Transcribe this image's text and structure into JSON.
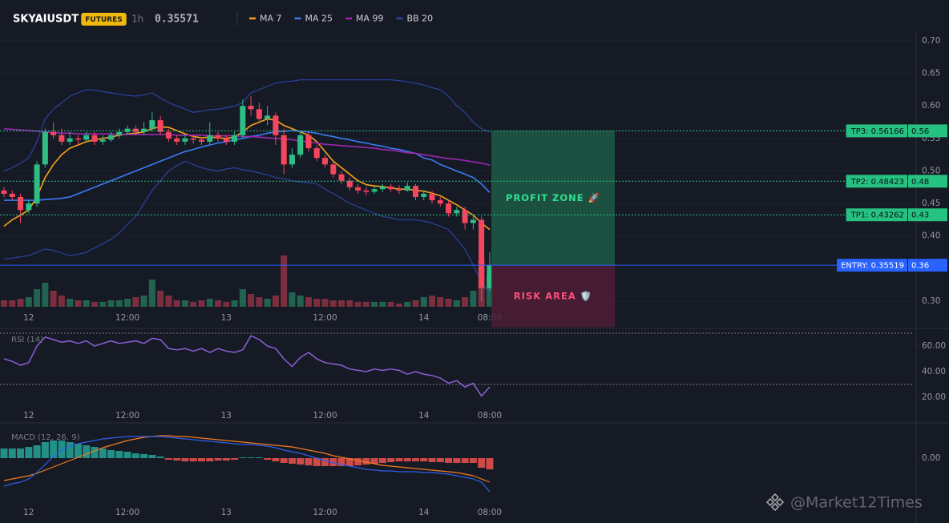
{
  "header": {
    "symbol": "SKYAIUSDT",
    "badge": "FUTURES",
    "interval": "1h",
    "price": 0.35571,
    "price_color": "#2ebd85",
    "watermark": "@Market12Times"
  },
  "chart_data": [
    {
      "type": "candlestick",
      "categories": [
        null,
        null,
        null,
        "12",
        null,
        null,
        null,
        null,
        null,
        null,
        null,
        null,
        null,
        null,
        null,
        "12:00",
        null,
        null,
        null,
        null,
        null,
        null,
        null,
        null,
        null,
        null,
        null,
        "13",
        null,
        null,
        null,
        null,
        null,
        null,
        null,
        null,
        null,
        null,
        null,
        "12:00",
        null,
        null,
        null,
        null,
        null,
        null,
        null,
        null,
        null,
        null,
        null,
        "14",
        null,
        null,
        null,
        null,
        null,
        null,
        null,
        "08:00"
      ],
      "ohlc": [
        [
          0.47,
          0.475,
          0.46,
          0.465
        ],
        [
          0.465,
          0.47,
          0.455,
          0.46
        ],
        [
          0.46,
          0.465,
          0.42,
          0.44
        ],
        [
          0.44,
          0.455,
          0.435,
          0.45
        ],
        [
          0.45,
          0.515,
          0.445,
          0.51
        ],
        [
          0.51,
          0.565,
          0.505,
          0.56
        ],
        [
          0.56,
          0.575,
          0.55,
          0.555
        ],
        [
          0.555,
          0.565,
          0.54,
          0.545
        ],
        [
          0.545,
          0.56,
          0.54,
          0.55
        ],
        [
          0.55,
          0.555,
          0.54,
          0.548
        ],
        [
          0.548,
          0.56,
          0.545,
          0.555
        ],
        [
          0.555,
          0.56,
          0.54,
          0.545
        ],
        [
          0.545,
          0.555,
          0.54,
          0.548
        ],
        [
          0.548,
          0.56,
          0.545,
          0.555
        ],
        [
          0.555,
          0.565,
          0.55,
          0.56
        ],
        [
          0.56,
          0.57,
          0.555,
          0.565
        ],
        [
          0.565,
          0.57,
          0.555,
          0.56
        ],
        [
          0.56,
          0.575,
          0.555,
          0.565
        ],
        [
          0.565,
          0.59,
          0.56,
          0.578
        ],
        [
          0.578,
          0.585,
          0.555,
          0.56
        ],
        [
          0.56,
          0.565,
          0.545,
          0.55
        ],
        [
          0.55,
          0.555,
          0.54,
          0.545
        ],
        [
          0.545,
          0.555,
          0.54,
          0.55
        ],
        [
          0.55,
          0.555,
          0.542,
          0.548
        ],
        [
          0.548,
          0.552,
          0.54,
          0.545
        ],
        [
          0.545,
          0.575,
          0.54,
          0.555
        ],
        [
          0.555,
          0.56,
          0.545,
          0.55
        ],
        [
          0.55,
          0.555,
          0.54,
          0.545
        ],
        [
          0.545,
          0.56,
          0.54,
          0.555
        ],
        [
          0.555,
          0.61,
          0.55,
          0.6
        ],
        [
          0.6,
          0.615,
          0.585,
          0.595
        ],
        [
          0.595,
          0.605,
          0.575,
          0.58
        ],
        [
          0.58,
          0.6,
          0.57,
          0.585
        ],
        [
          0.585,
          0.59,
          0.54,
          0.555
        ],
        [
          0.555,
          0.565,
          0.495,
          0.51
        ],
        [
          0.51,
          0.535,
          0.505,
          0.525
        ],
        [
          0.525,
          0.56,
          0.52,
          0.555
        ],
        [
          0.555,
          0.56,
          0.53,
          0.535
        ],
        [
          0.535,
          0.54,
          0.515,
          0.52
        ],
        [
          0.52,
          0.525,
          0.505,
          0.51
        ],
        [
          0.51,
          0.515,
          0.49,
          0.495
        ],
        [
          0.495,
          0.5,
          0.48,
          0.485
        ],
        [
          0.485,
          0.49,
          0.47,
          0.475
        ],
        [
          0.475,
          0.48,
          0.465,
          0.47
        ],
        [
          0.47,
          0.475,
          0.462,
          0.468
        ],
        [
          0.468,
          0.476,
          0.465,
          0.472
        ],
        [
          0.472,
          0.48,
          0.468,
          0.476
        ],
        [
          0.476,
          0.48,
          0.468,
          0.472
        ],
        [
          0.472,
          0.478,
          0.465,
          0.47
        ],
        [
          0.47,
          0.482,
          0.468,
          0.477
        ],
        [
          0.477,
          0.48,
          0.455,
          0.46
        ],
        [
          0.46,
          0.47,
          0.455,
          0.465
        ],
        [
          0.465,
          0.47,
          0.45,
          0.455
        ],
        [
          0.455,
          0.46,
          0.445,
          0.45
        ],
        [
          0.45,
          0.455,
          0.43,
          0.435
        ],
        [
          0.435,
          0.445,
          0.43,
          0.44
        ],
        [
          0.44,
          0.445,
          0.41,
          0.42
        ],
        [
          0.42,
          0.43,
          0.41,
          0.425
        ],
        [
          0.425,
          0.43,
          0.3,
          0.32
        ],
        [
          0.32,
          0.375,
          0.315,
          0.35571
        ]
      ],
      "volume": [
        8,
        8,
        10,
        12,
        22,
        30,
        20,
        14,
        10,
        8,
        8,
        6,
        6,
        8,
        8,
        10,
        12,
        14,
        34,
        20,
        14,
        8,
        8,
        6,
        8,
        10,
        8,
        6,
        8,
        22,
        16,
        12,
        10,
        14,
        64,
        18,
        14,
        12,
        10,
        10,
        8,
        8,
        8,
        6,
        6,
        6,
        6,
        6,
        4,
        6,
        8,
        12,
        14,
        12,
        10,
        8,
        12,
        20,
        58,
        40
      ],
      "up_color": "#2ebd85",
      "down_color": "#f6465d",
      "series": [
        {
          "name": "MA 7",
          "color": "#f7a21b",
          "values": [
            0.415,
            0.425,
            0.432,
            0.44,
            0.46,
            0.49,
            0.51,
            0.525,
            0.535,
            0.54,
            0.545,
            0.548,
            0.55,
            0.552,
            0.555,
            0.557,
            0.558,
            0.56,
            0.565,
            0.568,
            0.567,
            0.562,
            0.557,
            0.553,
            0.551,
            0.552,
            0.551,
            0.55,
            0.552,
            0.56,
            0.57,
            0.575,
            0.58,
            0.578,
            0.57,
            0.565,
            0.56,
            0.555,
            0.545,
            0.53,
            0.515,
            0.505,
            0.495,
            0.485,
            0.479,
            0.477,
            0.476,
            0.474,
            0.472,
            0.472,
            0.47,
            0.469,
            0.466,
            0.462,
            0.455,
            0.448,
            0.44,
            0.432,
            0.42,
            0.41
          ]
        },
        {
          "name": "MA 25",
          "color": "#3a7bf6",
          "values": [
            0.455,
            0.455,
            0.455,
            0.455,
            0.455,
            0.456,
            0.457,
            0.458,
            0.46,
            0.465,
            0.47,
            0.475,
            0.48,
            0.485,
            0.49,
            0.495,
            0.5,
            0.505,
            0.51,
            0.515,
            0.52,
            0.525,
            0.53,
            0.533,
            0.537,
            0.54,
            0.543,
            0.545,
            0.548,
            0.55,
            0.553,
            0.555,
            0.558,
            0.56,
            0.561,
            0.562,
            0.561,
            0.56,
            0.558,
            0.555,
            0.553,
            0.55,
            0.548,
            0.545,
            0.543,
            0.54,
            0.538,
            0.535,
            0.533,
            0.53,
            0.527,
            0.52,
            0.517,
            0.51,
            0.505,
            0.5,
            0.495,
            0.49,
            0.48,
            0.467
          ]
        },
        {
          "name": "MA 99",
          "color": "#9c27b0",
          "values": [
            0.565,
            0.564,
            0.563,
            0.562,
            0.561,
            0.56,
            0.559,
            0.558,
            0.558,
            0.557,
            0.557,
            0.557,
            0.557,
            0.557,
            0.556,
            0.556,
            0.556,
            0.556,
            0.556,
            0.556,
            0.556,
            0.555,
            0.555,
            0.555,
            0.555,
            0.554,
            0.554,
            0.554,
            0.554,
            0.553,
            0.553,
            0.552,
            0.551,
            0.55,
            0.549,
            0.548,
            0.546,
            0.545,
            0.543,
            0.541,
            0.54,
            0.539,
            0.538,
            0.537,
            0.536,
            0.535,
            0.533,
            0.532,
            0.53,
            0.528,
            0.527,
            0.525,
            0.523,
            0.521,
            0.519,
            0.518,
            0.516,
            0.514,
            0.512,
            0.509
          ]
        },
        {
          "name": "BB 20",
          "color": "#2a47a8",
          "upper": [
            0.5,
            0.505,
            0.512,
            0.52,
            0.545,
            0.58,
            0.595,
            0.605,
            0.615,
            0.62,
            0.625,
            0.624,
            0.622,
            0.62,
            0.618,
            0.616,
            0.615,
            0.617,
            0.62,
            0.612,
            0.605,
            0.6,
            0.595,
            0.59,
            0.592,
            0.594,
            0.595,
            0.597,
            0.6,
            0.605,
            0.62,
            0.625,
            0.63,
            0.635,
            0.637,
            0.638,
            0.64,
            0.64,
            0.64,
            0.64,
            0.64,
            0.64,
            0.64,
            0.64,
            0.64,
            0.64,
            0.64,
            0.64,
            0.639,
            0.637,
            0.635,
            0.632,
            0.628,
            0.625,
            0.615,
            0.6,
            0.59,
            0.575,
            0.565,
            0.56
          ],
          "lower": [
            0.365,
            0.366,
            0.368,
            0.37,
            0.375,
            0.38,
            0.378,
            0.374,
            0.37,
            0.372,
            0.375,
            0.382,
            0.388,
            0.395,
            0.405,
            0.418,
            0.43,
            0.45,
            0.47,
            0.485,
            0.5,
            0.508,
            0.515,
            0.51,
            0.505,
            0.502,
            0.5,
            0.503,
            0.505,
            0.502,
            0.5,
            0.497,
            0.494,
            0.49,
            0.488,
            0.485,
            0.483,
            0.482,
            0.48,
            0.472,
            0.465,
            0.458,
            0.45,
            0.445,
            0.44,
            0.435,
            0.43,
            0.428,
            0.425,
            0.425,
            0.425,
            0.423,
            0.42,
            0.415,
            0.41,
            0.395,
            0.38,
            0.355,
            0.33,
            0.31
          ]
        }
      ],
      "levels": [
        {
          "label": "TP3: 0.56166",
          "value": 0.56166,
          "tag": "0.56",
          "color": "#26c281",
          "line_style": "dotted"
        },
        {
          "label": "TP2: 0.48423",
          "value": 0.48423,
          "tag": "0.48",
          "color": "#26c281",
          "line_style": "dotted"
        },
        {
          "label": "TP1: 0.43262",
          "value": 0.43262,
          "tag": "0.43",
          "color": "#26c281",
          "line_style": "dotted"
        },
        {
          "label": "ENTRY: 0.35519",
          "value": 0.35519,
          "tag": "0.36",
          "color": "#2962ff",
          "line_style": "solid"
        }
      ],
      "zones": [
        {
          "label": "PROFIT ZONE 🚀",
          "from": 0.35519,
          "to": 0.56166,
          "color": "#1d5a45",
          "text_color": "#2ee08f"
        },
        {
          "label": "RISK AREA 🛡️",
          "from": 0.26,
          "to": 0.35519,
          "color": "#4e1d35",
          "text_color": "#ff4f7b"
        }
      ],
      "ylim": [
        0.2852,
        0.7135
      ],
      "yticks": [
        {
          "value": 0.3,
          "label": "0.30"
        },
        0.35,
        {
          "value": 0.4,
          "label": "0.40"
        },
        0.45,
        {
          "value": 0.5,
          "label": "0.50"
        },
        0.55,
        {
          "value": 0.6,
          "label": "0.60"
        },
        0.65,
        {
          "value": 0.7,
          "label": "0.70"
        }
      ],
      "grid": true
    },
    {
      "type": "line",
      "title": "RSI (14)",
      "color": "#8a5fd6",
      "values": [
        50,
        48,
        45,
        47,
        60,
        67,
        65,
        63,
        64,
        62,
        64,
        60,
        62,
        64,
        62,
        63,
        64,
        62,
        66,
        65,
        58,
        57,
        58,
        56,
        58,
        55,
        58,
        56,
        55,
        57,
        68,
        65,
        60,
        58,
        50,
        44,
        51,
        55,
        50,
        47,
        46,
        45,
        42,
        41,
        40,
        42,
        41,
        42,
        41,
        38,
        40,
        38,
        37,
        35,
        31,
        33,
        28,
        31,
        21,
        28
      ],
      "levels": [
        30,
        70
      ],
      "ylim": [
        14.4,
        70
      ],
      "yticks": [
        {
          "value": 60,
          "label": "60.00"
        },
        {
          "value": 40,
          "label": "40.00"
        },
        {
          "value": 20,
          "label": "20.00"
        }
      ]
    },
    {
      "type": "macd",
      "title": "MACD (12, 26, 9)",
      "macd": [
        -0.0175,
        -0.016,
        -0.015,
        -0.013,
        -0.009,
        -0.004,
        0.001,
        0.005,
        0.0075,
        0.009,
        0.01,
        0.011,
        0.012,
        0.0125,
        0.013,
        0.0135,
        0.0135,
        0.0135,
        0.0135,
        0.0135,
        0.013,
        0.0125,
        0.012,
        0.0115,
        0.011,
        0.0105,
        0.01,
        0.0095,
        0.009,
        0.0085,
        0.0085,
        0.008,
        0.0075,
        0.0065,
        0.005,
        0.004,
        0.003,
        0.0015,
        0,
        -0.0015,
        -0.003,
        -0.004,
        -0.005,
        -0.006,
        -0.007,
        -0.0075,
        -0.008,
        -0.008,
        -0.0085,
        -0.0085,
        -0.0085,
        -0.009,
        -0.009,
        -0.0095,
        -0.01,
        -0.011,
        -0.012,
        -0.013,
        -0.015,
        -0.021
      ],
      "signal": [
        -0.014,
        -0.013,
        -0.012,
        -0.011,
        -0.0095,
        -0.0075,
        -0.0055,
        -0.0035,
        -0.0015,
        0.0005,
        0.0025,
        0.0045,
        0.0065,
        0.008,
        0.0095,
        0.011,
        0.012,
        0.013,
        0.0135,
        0.014,
        0.014,
        0.0135,
        0.0135,
        0.013,
        0.0125,
        0.012,
        0.0115,
        0.011,
        0.0105,
        0.01,
        0.0095,
        0.009,
        0.0085,
        0.008,
        0.0075,
        0.007,
        0.006,
        0.005,
        0.004,
        0.003,
        0.0015,
        0.0005,
        -0.0005,
        -0.0015,
        -0.0025,
        -0.0035,
        -0.0045,
        -0.005,
        -0.0055,
        -0.006,
        -0.0065,
        -0.007,
        -0.0075,
        -0.008,
        -0.0085,
        -0.009,
        -0.01,
        -0.011,
        -0.013,
        -0.015
      ],
      "histogram": [
        0.006,
        0.006,
        0.006,
        0.007,
        0.008,
        0.01,
        0.011,
        0.011,
        0.01,
        0.009,
        0.008,
        0.007,
        0.006,
        0.005,
        0.0045,
        0.004,
        0.003,
        0.0025,
        0.002,
        0.001,
        -0.001,
        -0.0015,
        -0.002,
        -0.002,
        -0.002,
        -0.002,
        -0.0015,
        -0.0015,
        -0.001,
        0.0005,
        0.0005,
        0.0005,
        -0.001,
        -0.002,
        -0.003,
        -0.0035,
        -0.004,
        -0.0045,
        -0.005,
        -0.005,
        -0.005,
        -0.005,
        -0.005,
        -0.0045,
        -0.004,
        -0.0035,
        -0.003,
        -0.0025,
        -0.002,
        -0.002,
        -0.002,
        -0.002,
        -0.0025,
        -0.0025,
        -0.003,
        -0.003,
        -0.003,
        -0.003,
        -0.006,
        -0.007
      ],
      "macd_color": "#2f5fe8",
      "signal_color": "#f57c1f",
      "up_color": "#26a69a",
      "down_color": "#ef5350",
      "ylim": [
        -0.0265,
        0.0195
      ],
      "yticks": [
        {
          "value": 0,
          "label": "0.00"
        }
      ]
    }
  ]
}
